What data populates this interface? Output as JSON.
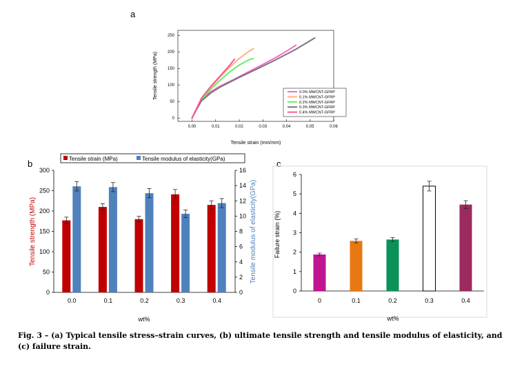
{
  "panel_labels": {
    "a": "a",
    "b": "b",
    "c": "c"
  },
  "caption": "Fig. 3 – (a) Typical tensile stress–strain curves, (b) ultimate tensile strength and tensile modulus of elasticity, and (c) failure strain.",
  "chart_data": [
    {
      "id": "a",
      "type": "line",
      "xlabel": "Tensile strain (mm/mm)",
      "ylabel": "Tensile strength (MPa)",
      "xlim": [
        -0.006,
        0.06
      ],
      "ylim": [
        -10,
        265
      ],
      "xticks": [
        0,
        0.01,
        0.02,
        0.03,
        0.04,
        0.05,
        0.06
      ],
      "xtick_labels": [
        "0.00",
        "0.01",
        "0.02",
        "0.03",
        "0.04",
        "0.05",
        "0.06"
      ],
      "yticks": [
        0,
        50,
        100,
        150,
        200,
        250
      ],
      "ytick_labels": [
        "0",
        "50",
        "100",
        "150",
        "200",
        "250"
      ],
      "grid": false,
      "legend_position": "bottom-right",
      "series": [
        {
          "name": "0.0% MWCNT-GFRP",
          "color": "#ff66cc",
          "x": [
            0,
            0.002,
            0.004,
            0.008,
            0.012,
            0.018,
            0.024,
            0.03,
            0.036,
            0.04,
            0.044
          ],
          "y": [
            0,
            28,
            55,
            80,
            97,
            118,
            140,
            162,
            185,
            202,
            220
          ]
        },
        {
          "name": "0.1% MWCNT-GFRP",
          "color": "#ffb380",
          "x": [
            0,
            0.002,
            0.004,
            0.008,
            0.012,
            0.016,
            0.02,
            0.024,
            0.026
          ],
          "y": [
            0,
            30,
            58,
            93,
            125,
            154,
            180,
            201,
            210
          ]
        },
        {
          "name": "0.2% MWCNT-GFRP",
          "color": "#66ee66",
          "x": [
            0,
            0.002,
            0.004,
            0.008,
            0.012,
            0.016,
            0.02,
            0.024,
            0.026
          ],
          "y": [
            0,
            28,
            55,
            88,
            115,
            140,
            160,
            176,
            180
          ]
        },
        {
          "name": "0.3% MWCNT-GFRP",
          "color": "#777777",
          "x": [
            0,
            0.002,
            0.004,
            0.008,
            0.012,
            0.02,
            0.028,
            0.036,
            0.044,
            0.052
          ],
          "y": [
            0,
            27,
            52,
            76,
            94,
            123,
            150,
            178,
            208,
            242
          ]
        },
        {
          "name": "0.4% MWCNT-GFRP",
          "color": "#ff5599",
          "x": [
            0,
            0.002,
            0.004,
            0.008,
            0.012,
            0.016,
            0.018
          ],
          "y": [
            0,
            30,
            60,
            96,
            128,
            160,
            178
          ]
        }
      ]
    },
    {
      "id": "b",
      "type": "bar",
      "categories": [
        "0.0",
        "0.1",
        "0.2",
        "0.3",
        "0.4"
      ],
      "xlabel": "wt%",
      "ylabel": "Tensile strength (MPa)",
      "y2label": "Tensile modulus of elasticity(GPa)",
      "ylim": [
        0,
        300
      ],
      "y2lim": [
        0,
        16
      ],
      "yticks": [
        0,
        50,
        100,
        150,
        200,
        250,
        300
      ],
      "y2ticks": [
        0,
        2,
        4,
        6,
        8,
        10,
        12,
        14,
        16
      ],
      "ylabel_color": "#c00000",
      "y2label_color": "#4f81bd",
      "grid": false,
      "legend_position": "top",
      "series": [
        {
          "name": "Tensile strain (MPa)",
          "axis": "left",
          "color": "#c00000",
          "values": [
            177,
            210,
            180,
            241,
            215
          ],
          "errors": [
            8,
            8,
            7,
            12,
            10
          ]
        },
        {
          "name": "Tensile modulus of elasticity(GPa)",
          "axis": "right",
          "color": "#4f81bd",
          "values": [
            13.9,
            13.8,
            13.0,
            10.3,
            11.7
          ],
          "errors": [
            0.6,
            0.6,
            0.6,
            0.5,
            0.6
          ]
        }
      ]
    },
    {
      "id": "c",
      "type": "bar",
      "categories": [
        "0",
        "0.1",
        "0.2",
        "0.3",
        "0.4"
      ],
      "xlabel": "wt%",
      "ylabel": "Failure strain (%)",
      "ylim": [
        0,
        6
      ],
      "yticks": [
        0,
        1,
        2,
        3,
        4,
        5,
        6
      ],
      "grid": false,
      "series": [
        {
          "values": [
            1.88,
            2.58,
            2.65,
            5.4,
            4.45
          ],
          "errors": [
            0.07,
            0.1,
            0.1,
            0.25,
            0.2
          ],
          "colors": [
            "#c0158e",
            "#e87811",
            "#0b9259",
            "#ffffff",
            "#9b2a5e"
          ],
          "outline": [
            false,
            false,
            false,
            true,
            false
          ]
        }
      ]
    }
  ]
}
